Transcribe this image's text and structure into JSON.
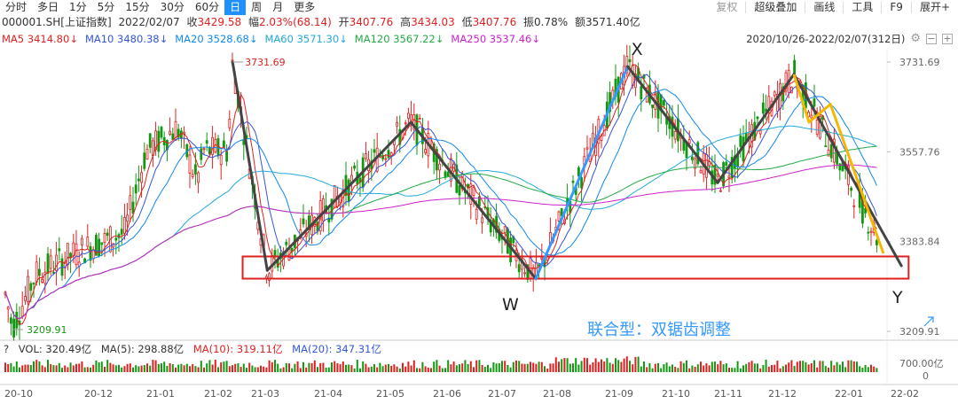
{
  "toolbar": {
    "periods": [
      "分时",
      "多日",
      "1分",
      "5分",
      "15分",
      "30分",
      "60分",
      "日",
      "周",
      "月",
      "更多"
    ],
    "active_period": "日",
    "right_items": [
      "复权",
      "超级叠加",
      "画线",
      "工具",
      "F9",
      "展开+"
    ]
  },
  "quote": {
    "code": "000001.SH[上证指数]",
    "date": "2022/02/07",
    "close_label": "收",
    "close": "3429.58",
    "change_label": "幅",
    "change": "2.03%(68.14)",
    "open_label": "开",
    "open": "3407.76",
    "high_label": "高",
    "high": "3434.03",
    "low_label": "低",
    "low": "3407.76",
    "amp_label": "振",
    "amp": "0.78%",
    "amount_label": "额",
    "amount": "3571.40亿"
  },
  "ma_legend": [
    {
      "label": "MA5",
      "value": "3414.80↓",
      "color": "#e02020"
    },
    {
      "label": "MA10",
      "value": "3480.38↓",
      "color": "#3355dd"
    },
    {
      "label": "MA20",
      "value": "3528.68↓",
      "color": "#1188ee"
    },
    {
      "label": "MA60",
      "value": "3571.30↓",
      "color": "#22aadd"
    },
    {
      "label": "MA120",
      "value": "3567.22↓",
      "color": "#22aa44"
    },
    {
      "label": "MA250",
      "value": "3537.46↓",
      "color": "#cc22cc"
    }
  ],
  "range": "2020/10/26-2022/02/07(312日)",
  "volume_legend": {
    "prefix": "?",
    "vol": "VOL: 320.49亿",
    "ma5": "MA(5): 298.88亿",
    "ma10": "MA(10): 319.11亿",
    "ma20": "MA(20): 347.31亿",
    "colors": {
      "vol": "#333333",
      "ma5": "#333333",
      "ma10": "#e02020",
      "ma20": "#3355dd"
    }
  },
  "chart_data": {
    "type": "candlestick",
    "y_ticks": [
      3731.69,
      3557.76,
      3383.84,
      3209.91
    ],
    "y_tick_labels": [
      "3731.69",
      "3557.76",
      "3383.84",
      "3209.91"
    ],
    "ylim": [
      3209.91,
      3731.69
    ],
    "x_tick_labels": [
      "20-10",
      "20-12",
      "21-01",
      "21-02",
      "21-03",
      "21-04",
      "21-05",
      "21-06",
      "21-07",
      "21-08",
      "21-09",
      "21-10",
      "21-11",
      "21-12",
      "22-01",
      "22-02"
    ],
    "x_tick_dates": [
      "2020-10",
      "2020-12",
      "2021-01",
      "2021-02",
      "2021-03",
      "2021-04",
      "2021-05",
      "2021-06",
      "2021-07",
      "2021-08",
      "2021-09",
      "2021-10",
      "2021-11",
      "2021-12",
      "2022-01",
      "2022-02"
    ],
    "high_marker": "3731.69",
    "low_marker": "3209.91",
    "volume_axis_label": "700.00亿",
    "volume_axis_zero": "0",
    "pattern_points": [
      {
        "label": "",
        "date": "2021-02-18",
        "value": 3731.69
      },
      {
        "label": "",
        "date": "2021-03-09",
        "value": 3328
      },
      {
        "label": "",
        "date": "2021-05-20",
        "value": 3615
      },
      {
        "label": "W",
        "date": "2021-07-28",
        "value": 3312
      },
      {
        "label": "X",
        "date": "2021-09-13",
        "value": 3723
      },
      {
        "label": "",
        "date": "2021-11-03",
        "value": 3498
      },
      {
        "label": "",
        "date": "2021-12-13",
        "value": 3708
      },
      {
        "label": "Y",
        "date": "2022-02-07",
        "value": 3337
      }
    ],
    "sub_wave": [
      {
        "date": "2021-12-13",
        "value": 3708
      },
      {
        "date": "2021-12-20",
        "value": 3615
      },
      {
        "date": "2021-12-30",
        "value": 3650
      },
      {
        "date": "2022-01-28",
        "value": 3361
      }
    ],
    "support_box": {
      "low": 3312,
      "high": 3355,
      "from": "2021-02-24",
      "to": "2022-02-11"
    },
    "annotation": "联合型：双锯齿调整",
    "labels": {
      "x": "X",
      "w": "W",
      "y": "Y"
    }
  }
}
